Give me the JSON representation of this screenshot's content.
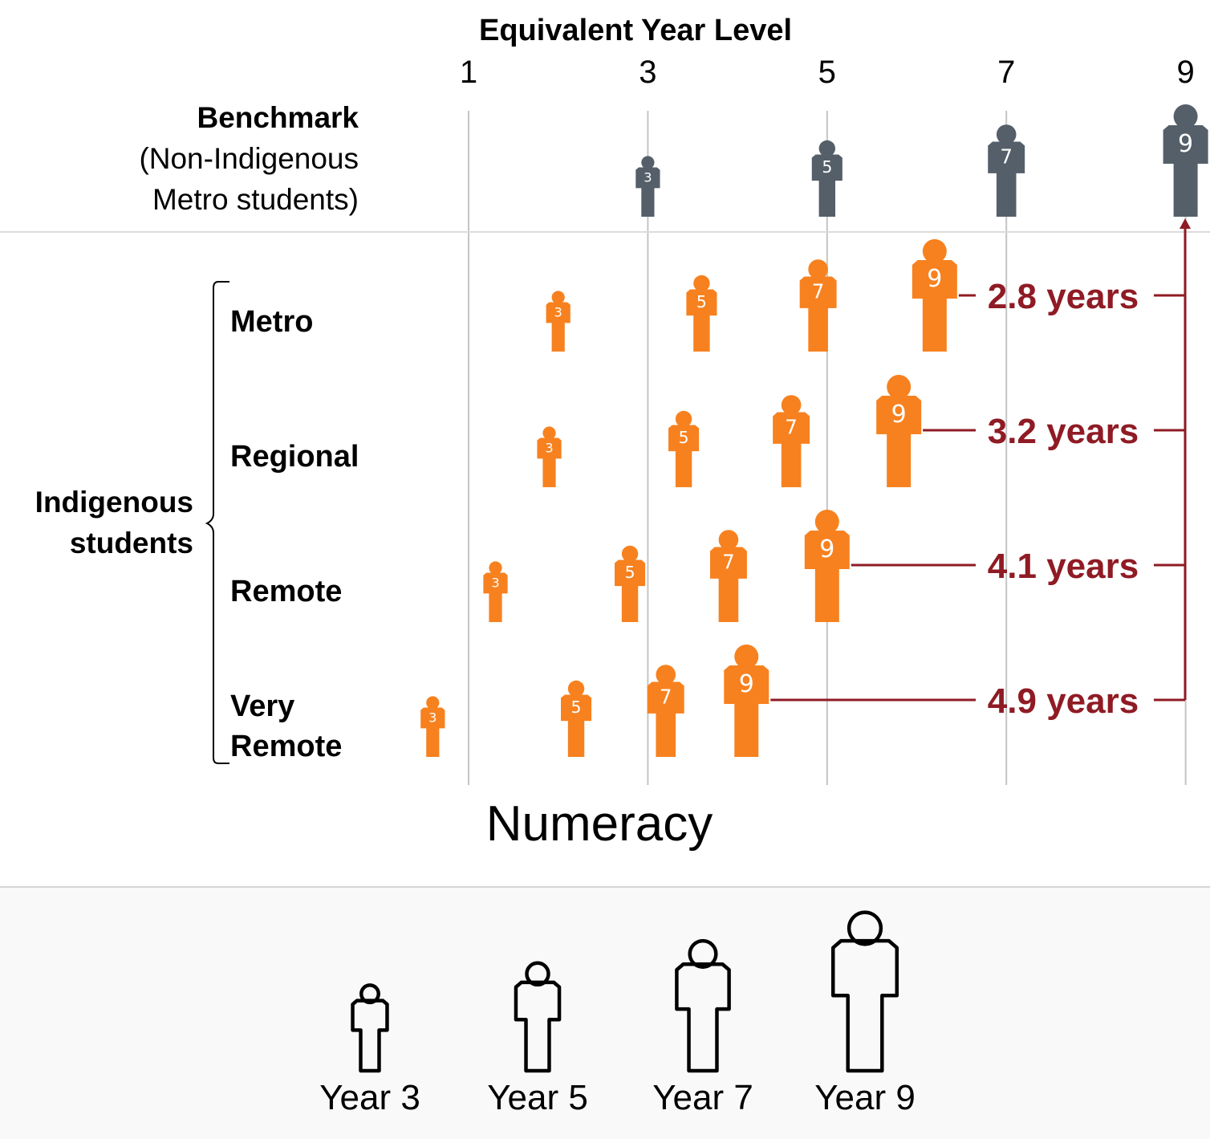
{
  "chart_data": {
    "type": "scatter",
    "title": "Numeracy",
    "xlabel": "Equivalent Year Level",
    "x_ticks": [
      1,
      3,
      5,
      7,
      9
    ],
    "xlim": [
      0.4,
      9.2
    ],
    "benchmark": {
      "label_lines": [
        "Benchmark",
        "(Non-Indigenous",
        "Metro students)"
      ],
      "points": [
        {
          "year": "3",
          "x": 3
        },
        {
          "year": "5",
          "x": 5
        },
        {
          "year": "7",
          "x": 7
        },
        {
          "year": "9",
          "x": 9
        }
      ]
    },
    "group_label_lines": [
      "Indigenous",
      "students"
    ],
    "series": [
      {
        "name_lines": [
          "Metro"
        ],
        "gap_label": "2.8 years",
        "points": [
          {
            "year": "3",
            "x": 2.0
          },
          {
            "year": "5",
            "x": 3.6
          },
          {
            "year": "7",
            "x": 4.9
          },
          {
            "year": "9",
            "x": 6.2
          }
        ]
      },
      {
        "name_lines": [
          "Regional"
        ],
        "gap_label": "3.2 years",
        "points": [
          {
            "year": "3",
            "x": 1.9
          },
          {
            "year": "5",
            "x": 3.4
          },
          {
            "year": "7",
            "x": 4.6
          },
          {
            "year": "9",
            "x": 5.8
          }
        ]
      },
      {
        "name_lines": [
          "Remote"
        ],
        "gap_label": "4.1 years",
        "points": [
          {
            "year": "3",
            "x": 1.3
          },
          {
            "year": "5",
            "x": 2.8
          },
          {
            "year": "7",
            "x": 3.9
          },
          {
            "year": "9",
            "x": 5.0
          }
        ]
      },
      {
        "name_lines": [
          "Very",
          "Remote"
        ],
        "gap_label": "4.9 years",
        "points": [
          {
            "year": "3",
            "x": 0.6
          },
          {
            "year": "5",
            "x": 2.2
          },
          {
            "year": "7",
            "x": 3.2
          },
          {
            "year": "9",
            "x": 4.1
          }
        ]
      }
    ],
    "colors": {
      "benchmark": "#555f6a",
      "indigenous": "#f7811f",
      "gap": "#8f1b24",
      "grid": "#c4c4c4"
    }
  },
  "legend": {
    "items": [
      {
        "year": "3",
        "label": "Year 3"
      },
      {
        "year": "5",
        "label": "Year 5"
      },
      {
        "year": "7",
        "label": "Year 7"
      },
      {
        "year": "9",
        "label": "Year 9"
      }
    ]
  }
}
